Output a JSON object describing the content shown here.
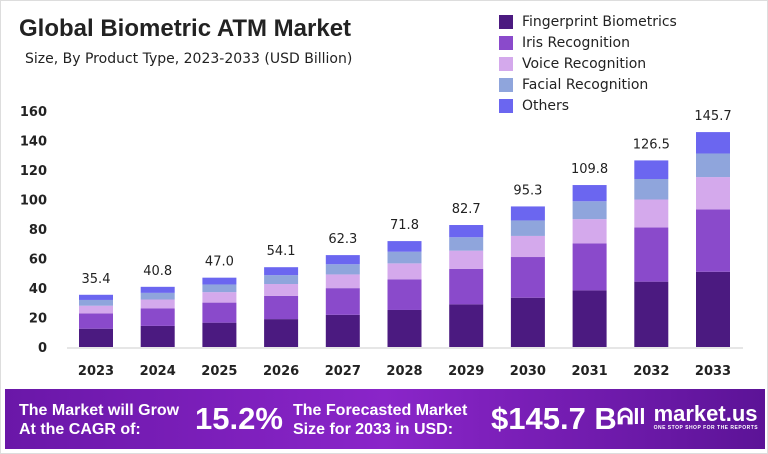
{
  "chart_data": {
    "type": "bar",
    "stacked": true,
    "title": "Global Biometric ATM Market",
    "subtitle": "Size, By Product Type, 2023-2033 (USD Billion)",
    "categories": [
      "2023",
      "2024",
      "2025",
      "2026",
      "2027",
      "2028",
      "2029",
      "2030",
      "2031",
      "2032",
      "2033"
    ],
    "totals": [
      "35.4",
      "40.8",
      "47.0",
      "54.1",
      "62.3",
      "71.8",
      "82.7",
      "95.3",
      "109.8",
      "126.5",
      "145.7"
    ],
    "series": [
      {
        "name": "Fingerprint Biometrics",
        "color": "#4b1a80",
        "values": [
          12.4,
          14.3,
          16.5,
          18.9,
          21.8,
          25.1,
          28.9,
          33.4,
          38.4,
          44.3,
          51.0
        ]
      },
      {
        "name": "Iris Recognition",
        "color": "#8a4acb",
        "values": [
          10.3,
          11.8,
          13.6,
          15.7,
          18.1,
          20.8,
          24.0,
          27.6,
          31.8,
          36.7,
          42.3
        ]
      },
      {
        "name": "Voice Recognition",
        "color": "#d4a9ec",
        "values": [
          5.3,
          6.1,
          7.1,
          8.1,
          9.3,
          10.8,
          12.4,
          14.3,
          16.5,
          19.0,
          21.9
        ]
      },
      {
        "name": "Facial Recognition",
        "color": "#8fa5dc",
        "values": [
          3.9,
          4.5,
          5.2,
          6.0,
          6.9,
          7.9,
          9.1,
          10.5,
          12.1,
          13.9,
          16.0
        ]
      },
      {
        "name": "Others",
        "color": "#6b66f0",
        "values": [
          3.5,
          4.1,
          4.6,
          5.4,
          6.2,
          7.2,
          8.3,
          9.5,
          11.0,
          12.6,
          14.5
        ]
      }
    ],
    "yticks": [
      "0",
      "20",
      "40",
      "60",
      "80",
      "100",
      "120",
      "140",
      "160"
    ],
    "ylim": [
      0,
      160
    ],
    "legend": "top-right",
    "grid": false
  },
  "banner": {
    "cagr_label_1": "The Market will Grow",
    "cagr_label_2": "At the CAGR of:",
    "cagr_value": "15.2%",
    "forecast_label_1": "The Forecasted Market",
    "forecast_label_2": "Size for 2033 in USD:",
    "forecast_value": "$145.7 B",
    "logo_text": "market.us",
    "logo_tagline": "ONE STOP SHOP FOR THE REPORTS"
  }
}
